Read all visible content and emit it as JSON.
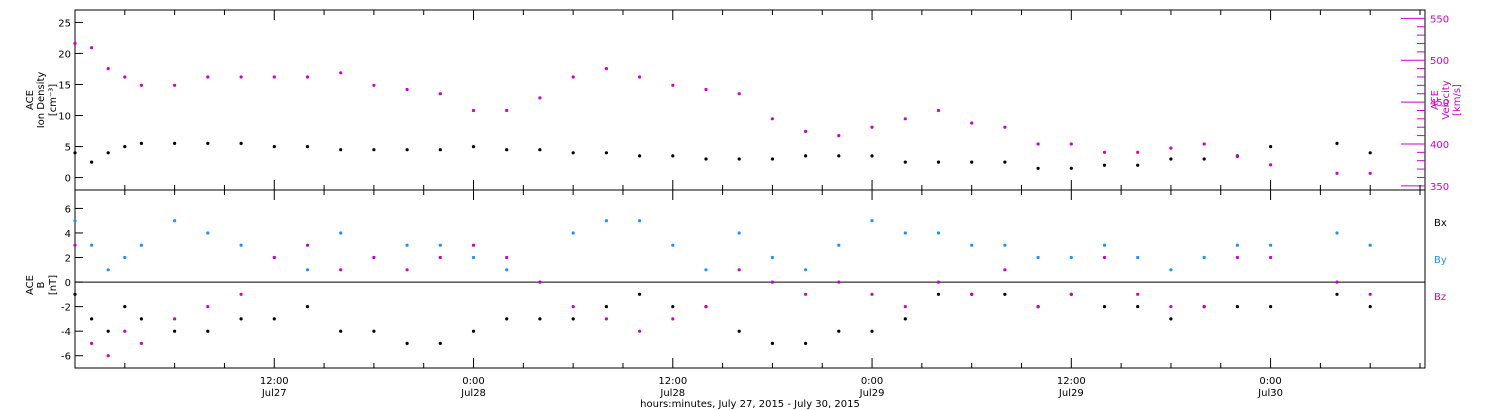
{
  "chart_data": [
    {
      "type": "scatter",
      "panel": "plasma",
      "ylabel_left": [
        "ACE",
        "Ion Density",
        "[cm⁻³]"
      ],
      "ylabel_right": [
        "ACE",
        "Velocity",
        "[km/s]"
      ],
      "ylim_left": [
        -2,
        27
      ],
      "ylim_right": [
        345,
        560
      ],
      "yticks_left": [
        0,
        5,
        10,
        15,
        20,
        25
      ],
      "yticks_right": [
        350,
        400,
        450,
        500,
        550
      ],
      "xlim_hours": [
        0,
        81.3
      ],
      "colors": {
        "density": "#000000",
        "velocity": "#cc00cc"
      },
      "series": [
        {
          "name": "",
          "axis": "left",
          "color": "#000000",
          "x": [
            0,
            1,
            2,
            3,
            4,
            6,
            8,
            10,
            12,
            14,
            16,
            18,
            20,
            22,
            24,
            26,
            28,
            30,
            32,
            34,
            36,
            38,
            40,
            42,
            44,
            46,
            48,
            50,
            52,
            54,
            56,
            58,
            60,
            62,
            64,
            66,
            68,
            70,
            72,
            76,
            78
          ],
          "values": [
            4,
            2.5,
            4,
            5,
            5.5,
            5.5,
            5.5,
            5.5,
            5,
            5,
            4.5,
            4.5,
            4.5,
            4.5,
            5,
            4.5,
            4.5,
            4,
            4,
            3.5,
            3.5,
            3,
            3,
            3,
            3.5,
            3.5,
            3.5,
            2.5,
            2.5,
            2.5,
            2.5,
            1.5,
            1.5,
            2,
            2,
            3,
            3,
            3.5,
            5,
            5.5,
            4
          ]
        },
        {
          "name": "",
          "axis": "right",
          "color": "#cc00cc",
          "x": [
            0,
            1,
            2,
            3,
            4,
            6,
            8,
            10,
            12,
            14,
            16,
            18,
            20,
            22,
            24,
            26,
            28,
            30,
            32,
            34,
            36,
            38,
            40,
            42,
            44,
            46,
            48,
            50,
            52,
            54,
            56,
            58,
            60,
            62,
            64,
            66,
            68,
            70,
            72,
            76,
            78
          ],
          "values": [
            520,
            515,
            490,
            480,
            470,
            470,
            480,
            480,
            480,
            480,
            485,
            470,
            465,
            460,
            440,
            440,
            455,
            480,
            490,
            480,
            470,
            465,
            460,
            430,
            415,
            410,
            420,
            430,
            440,
            425,
            420,
            400,
            400,
            390,
            390,
            395,
            400,
            385,
            375,
            365,
            365
          ]
        }
      ]
    },
    {
      "type": "scatter",
      "panel": "magnetic-field",
      "ylabel_left": [
        "ACE",
        "B",
        "[nT]"
      ],
      "legend": [
        "Bx",
        "By",
        "Bz"
      ],
      "ylim": [
        -7,
        7.5
      ],
      "yticks": [
        -6,
        -4,
        -2,
        0,
        2,
        4,
        6
      ],
      "zero_line": true,
      "xlim_hours": [
        0,
        81.3
      ],
      "colors": {
        "Bx": "#000000",
        "By": "#1e90ff",
        "Bz": "#cc00cc"
      },
      "series": [
        {
          "name": "Bx",
          "color": "#000000",
          "x": [
            0,
            1,
            2,
            3,
            4,
            6,
            8,
            10,
            12,
            14,
            16,
            18,
            20,
            22,
            24,
            26,
            28,
            30,
            32,
            34,
            36,
            38,
            40,
            42,
            44,
            46,
            48,
            50,
            52,
            54,
            56,
            58,
            60,
            62,
            64,
            66,
            68,
            70,
            72,
            76,
            78
          ],
          "values": [
            -1,
            -3,
            -4,
            -2,
            -3,
            -4,
            -4,
            -3,
            -3,
            -2,
            -4,
            -4,
            -5,
            -5,
            -4,
            -3,
            -3,
            -3,
            -2,
            -1,
            -2,
            -2,
            -4,
            -5,
            -5,
            -4,
            -4,
            -3,
            -1,
            -1,
            -1,
            -2,
            -1,
            -2,
            -2,
            -3,
            -2,
            -2,
            -2,
            -1,
            -2
          ]
        },
        {
          "name": "By",
          "color": "#1e90ff",
          "x": [
            0,
            1,
            2,
            3,
            4,
            6,
            8,
            10,
            12,
            14,
            16,
            18,
            20,
            22,
            24,
            26,
            28,
            30,
            32,
            34,
            36,
            38,
            40,
            42,
            44,
            46,
            48,
            50,
            52,
            54,
            56,
            58,
            60,
            62,
            64,
            66,
            68,
            70,
            72,
            76,
            78
          ],
          "values": [
            5,
            3,
            1,
            2,
            3,
            5,
            4,
            3,
            2,
            1,
            4,
            2,
            3,
            3,
            2,
            1,
            0,
            4,
            5,
            5,
            3,
            1,
            4,
            2,
            1,
            3,
            5,
            4,
            4,
            3,
            3,
            2,
            2,
            3,
            2,
            1,
            2,
            3,
            3,
            4,
            3
          ]
        },
        {
          "name": "Bz",
          "color": "#cc00cc",
          "x": [
            0,
            1,
            2,
            3,
            4,
            6,
            8,
            10,
            12,
            14,
            16,
            18,
            20,
            22,
            24,
            26,
            28,
            30,
            32,
            34,
            36,
            38,
            40,
            42,
            44,
            46,
            48,
            50,
            52,
            54,
            56,
            58,
            60,
            62,
            64,
            66,
            68,
            70,
            72,
            76,
            78
          ],
          "values": [
            3,
            -5,
            -6,
            -4,
            -5,
            -3,
            -2,
            -1,
            2,
            3,
            1,
            2,
            1,
            2,
            3,
            2,
            0,
            -2,
            -3,
            -4,
            -3,
            -2,
            1,
            0,
            -1,
            0,
            -1,
            -2,
            0,
            -1,
            1,
            -2,
            -1,
            2,
            -1,
            -2,
            -2,
            2,
            2,
            0,
            -1
          ]
        }
      ]
    }
  ],
  "x_axis": {
    "tick_labels": [
      {
        "hour": 12,
        "time": "12:00",
        "day": "Jul27"
      },
      {
        "hour": 24,
        "time": "0:00",
        "day": "Jul28"
      },
      {
        "hour": 36,
        "time": "12:00",
        "day": "Jul28"
      },
      {
        "hour": 48,
        "time": "0:00",
        "day": "Jul29"
      },
      {
        "hour": 60,
        "time": "12:00",
        "day": "Jul29"
      },
      {
        "hour": 72,
        "time": "0:00",
        "day": "Jul30"
      }
    ],
    "title": "hours:minutes, July 27, 2015 - July 30, 2015"
  }
}
